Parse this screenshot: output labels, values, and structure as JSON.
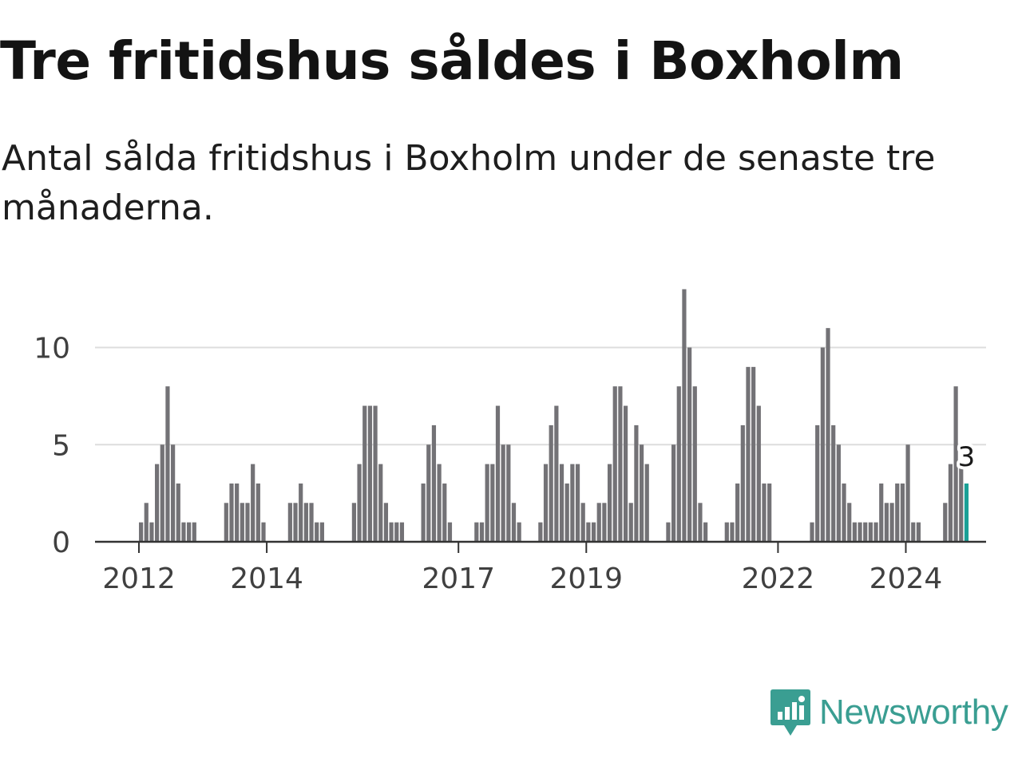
{
  "title": "Tre fritidshus såldes i Boxholm",
  "subtitle": "Antal sålda fritidshus i Boxholm under de senaste tre månaderna.",
  "brand": {
    "name": "Newsworthy",
    "color": "#3a9e92",
    "icon": "newsworthy-chart-bubble-icon"
  },
  "colors": {
    "bar": "#737276",
    "highlight": "#1aa096",
    "grid": "#dddddd",
    "axis": "#333333"
  },
  "chart_data": {
    "type": "bar",
    "title": "Tre fritidshus såldes i Boxholm",
    "subtitle": "Antal sålda fritidshus i Boxholm under de senaste tre månaderna.",
    "xlabel": "",
    "ylabel": "",
    "ylim": [
      0,
      13
    ],
    "yticks": [
      0,
      5,
      10
    ],
    "xticks": [
      "2012",
      "2014",
      "2017",
      "2019",
      "2022",
      "2024"
    ],
    "grid": "horizontal",
    "x_start": "2011-06",
    "highlight": {
      "x": "2024-09",
      "value": 3,
      "label": "3"
    },
    "series": [
      {
        "values": [
          0,
          0,
          0,
          0,
          0,
          0,
          0,
          1,
          2,
          1,
          4,
          5,
          8,
          5,
          3,
          1,
          1,
          1,
          0,
          0,
          0,
          0,
          0,
          2,
          3,
          3,
          2,
          2,
          4,
          3,
          1,
          0,
          0,
          0,
          0,
          2,
          2,
          3,
          2,
          2,
          1,
          1,
          0,
          0,
          0,
          0,
          0,
          2,
          4,
          7,
          7,
          7,
          4,
          2,
          1,
          1,
          1,
          0,
          0,
          0,
          3,
          5,
          6,
          4,
          3,
          1,
          0,
          0,
          0,
          0,
          1,
          1,
          4,
          4,
          7,
          5,
          5,
          2,
          1,
          0,
          0,
          0,
          1,
          4,
          6,
          7,
          4,
          3,
          4,
          4,
          2,
          1,
          1,
          2,
          2,
          4,
          8,
          8,
          7,
          2,
          6,
          5,
          4,
          0,
          0,
          0,
          1,
          5,
          8,
          13,
          10,
          8,
          2,
          1,
          0,
          0,
          0,
          1,
          1,
          3,
          6,
          9,
          9,
          7,
          3,
          3,
          0,
          0,
          0,
          0,
          0,
          0,
          0,
          1,
          6,
          10,
          11,
          6,
          5,
          3,
          2,
          1,
          1,
          1,
          1,
          1,
          3,
          2,
          2,
          3,
          3,
          5,
          1,
          1,
          0,
          0,
          0,
          0,
          2,
          4,
          8,
          4,
          3
        ]
      }
    ]
  }
}
